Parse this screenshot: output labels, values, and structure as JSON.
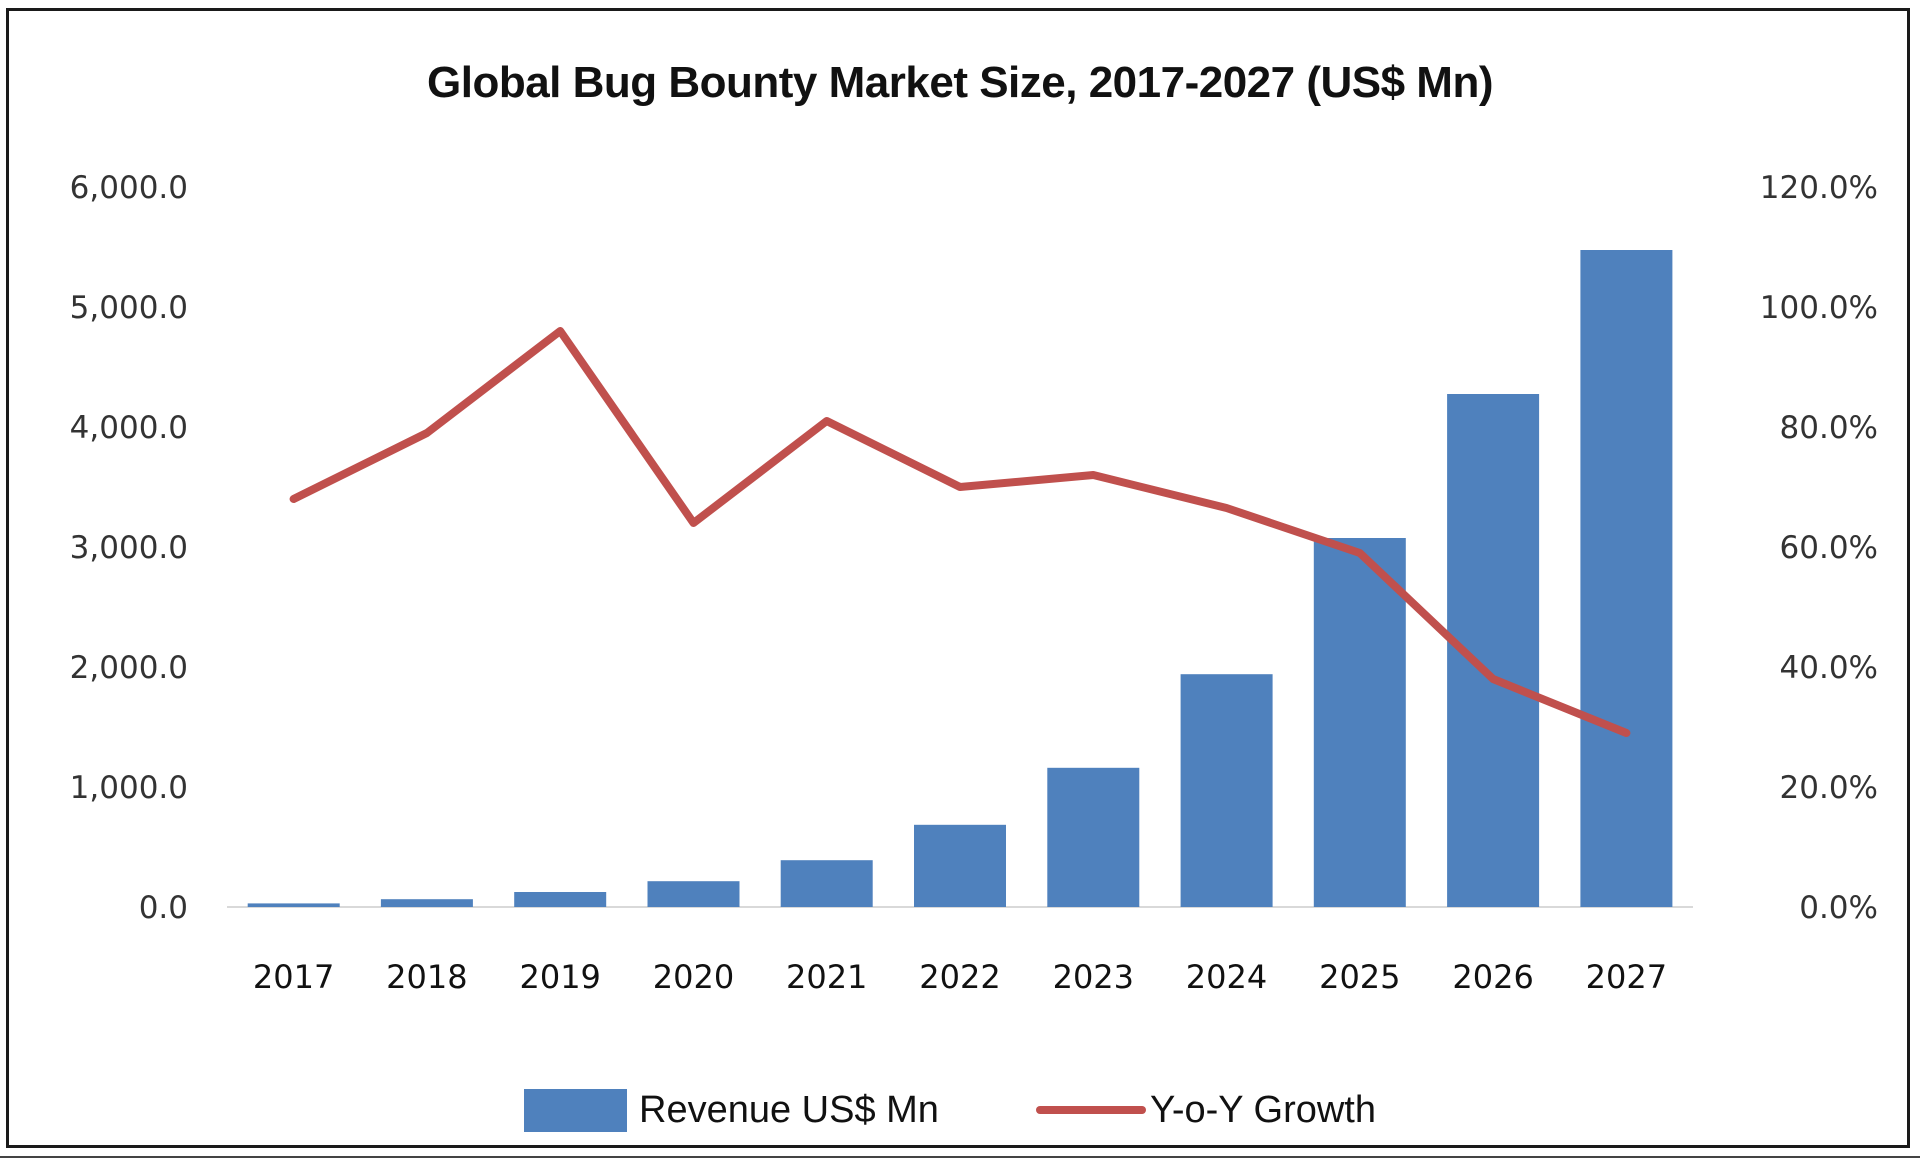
{
  "chart_data": {
    "type": "bar",
    "combo": [
      "bar",
      "line"
    ],
    "title": "Global Bug Bounty Market Size, 2017-2027 (US$ Mn)",
    "xlabel": "",
    "ylabel": "",
    "categories": [
      "2017",
      "2018",
      "2019",
      "2020",
      "2021",
      "2022",
      "2023",
      "2024",
      "2025",
      "2026",
      "2027"
    ],
    "series": [
      {
        "name": "Revenue US$ Mn",
        "type": "bar",
        "axis": "left",
        "color": "#4f81bd",
        "values": [
          30,
          65,
          125,
          215,
          390,
          685,
          1160,
          1940,
          3075,
          4275,
          5475
        ]
      },
      {
        "name": "Y-o-Y Growth",
        "type": "line",
        "axis": "right",
        "color": "#c0504d",
        "unit": "%",
        "values": [
          68.0,
          79.0,
          96.0,
          64.0,
          81.0,
          70.0,
          72.0,
          66.5,
          59.0,
          38.0,
          29.0
        ]
      }
    ],
    "ylim": [
      0,
      6000
    ],
    "y2lim": [
      0,
      120
    ],
    "left_ticks": [
      "0.0",
      "1,000.0",
      "2,000.0",
      "3,000.0",
      "4,000.0",
      "5,000.0",
      "6,000.0"
    ],
    "right_ticks": [
      "0.0%",
      "20.0%",
      "40.0%",
      "60.0%",
      "80.0%",
      "100.0%",
      "120.0%"
    ],
    "grid": false,
    "legend_position": "bottom"
  },
  "legend": {
    "bar_label": "Revenue US$ Mn",
    "line_label": "Y-o-Y Growth"
  }
}
